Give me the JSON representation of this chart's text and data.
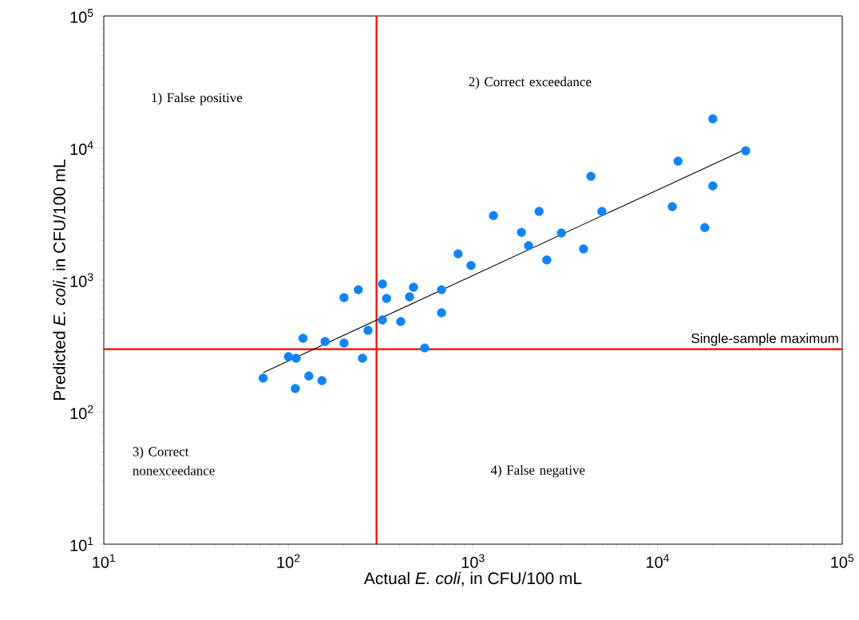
{
  "chart_data": {
    "type": "scatter",
    "xlabel": "Actual *E. coli*, in CFU/100 mL",
    "ylabel": "Predicted *E. coli*, in CFU/100 mL",
    "log": "xy",
    "xlim": [
      10,
      100000
    ],
    "ylim": [
      10,
      100000
    ],
    "xticks": [
      {
        "value": 10,
        "label": "10$^{1}$"
      },
      {
        "value": 100,
        "label": "10$^{2}$"
      },
      {
        "value": 1000,
        "label": "10$^{3}$"
      },
      {
        "value": 10000,
        "label": "10$^{4}$"
      },
      {
        "value": 100000,
        "label": "10$^{5}$"
      }
    ],
    "yticks": [
      {
        "value": 10,
        "label": "10$^{1}$"
      },
      {
        "value": 100,
        "label": "10$^{2}$"
      },
      {
        "value": 1000,
        "label": "10$^{3}$"
      },
      {
        "value": 10000,
        "label": "10$^{4}$"
      },
      {
        "value": 100000,
        "label": "10$^{5}$"
      }
    ],
    "series": [
      {
        "color": "#0a84ff",
        "marker": "circle",
        "x": [
          73,
          100,
          110,
          109,
          129,
          152,
          120,
          158,
          200,
          252,
          270,
          200,
          239,
          323,
          340,
          323,
          406,
          547,
          453,
          476,
          675,
          675,
          830,
          975,
          1290,
          1830,
          2000,
          2280,
          2510,
          3010,
          3970,
          4350,
          4990,
          12000,
          12900,
          18000,
          19900,
          19900,
          30000
        ],
        "values": [
          181,
          263,
          256,
          151,
          188,
          173,
          362,
          343,
          333,
          256,
          416,
          736,
          845,
          934,
          726,
          499,
          485,
          306,
          747,
          882,
          845,
          565,
          1580,
          1290,
          3080,
          2300,
          1820,
          3310,
          1420,
          2270,
          1720,
          6100,
          3310,
          3600,
          7940,
          2500,
          16600,
          5160,
          9520
        ]
      },
      {
        "type": "line",
        "color": "#000000",
        "marker": "none",
        "line_style": "solid",
        "x": [
          73,
          30000
        ],
        "values": [
          199,
          9800
        ]
      }
    ],
    "ref_lines": [
      {
        "axis": "x",
        "value": 300,
        "color": "#ff0000"
      },
      {
        "axis": "y",
        "value": 300,
        "color": "#ff0000",
        "label": "Single-sample maximum"
      }
    ],
    "annotations": [
      "1) False positive",
      "2) Correct exceedance",
      "3) Correct nonexceedance",
      "4) False negative"
    ]
  }
}
